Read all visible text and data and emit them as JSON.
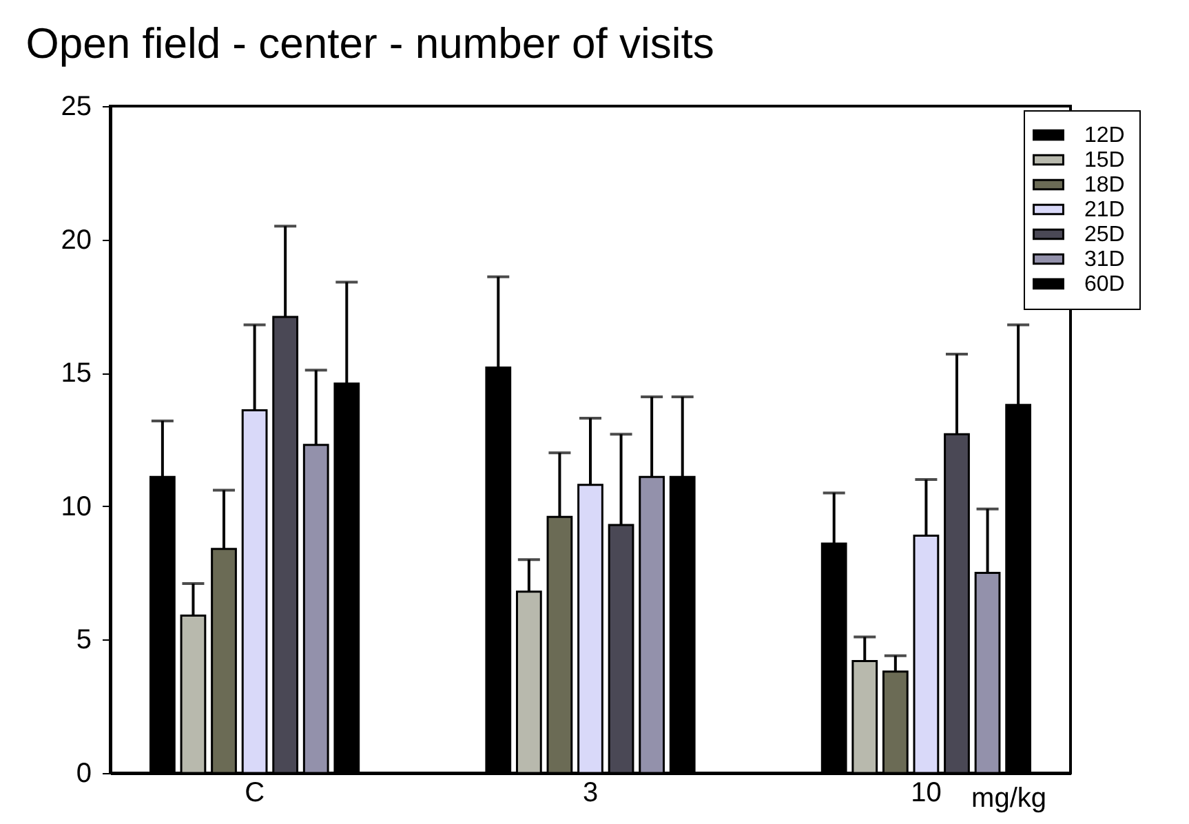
{
  "chart_data": {
    "type": "bar",
    "title": "Open field - center - number of visits",
    "xlabel": "mg/kg",
    "categories": [
      "C",
      "3",
      "10"
    ],
    "series": [
      {
        "name": "12D",
        "color": "#000000",
        "values": [
          11.1,
          15.2,
          8.6
        ],
        "errors": [
          [
            11.1,
            13.2
          ],
          [
            15.2,
            18.6
          ],
          [
            8.6,
            10.5
          ]
        ]
      },
      {
        "name": "15D",
        "color": "#b8b9ad",
        "values": [
          5.9,
          6.8,
          4.2
        ],
        "errors": [
          [
            5.9,
            7.1
          ],
          [
            6.8,
            8.0
          ],
          [
            4.2,
            5.1
          ]
        ]
      },
      {
        "name": "18D",
        "color": "#6b6b55",
        "values": [
          8.4,
          9.6,
          3.8
        ],
        "errors": [
          [
            8.4,
            10.6
          ],
          [
            9.6,
            12.0
          ],
          [
            3.8,
            4.4
          ]
        ]
      },
      {
        "name": "21D",
        "color": "#d9d9f9",
        "values": [
          13.6,
          10.8,
          8.9
        ],
        "errors": [
          [
            13.6,
            16.8
          ],
          [
            10.8,
            13.3
          ],
          [
            8.9,
            11.0
          ]
        ]
      },
      {
        "name": "25D",
        "color": "#4a4855",
        "values": [
          17.1,
          9.3,
          12.7
        ],
        "errors": [
          [
            17.1,
            20.5
          ],
          [
            9.3,
            12.7
          ],
          [
            12.7,
            15.7
          ]
        ]
      },
      {
        "name": "31D",
        "color": "#9391ab",
        "values": [
          12.3,
          11.1,
          7.5
        ],
        "errors": [
          [
            12.3,
            15.1
          ],
          [
            11.1,
            14.1
          ],
          [
            7.5,
            9.9
          ]
        ]
      },
      {
        "name": "60D",
        "color": "#000000",
        "values": [
          14.6,
          11.1,
          13.8
        ],
        "errors": [
          [
            14.6,
            18.4
          ],
          [
            11.1,
            14.1
          ],
          [
            13.8,
            16.8
          ]
        ]
      }
    ],
    "ylim": [
      0,
      25
    ],
    "yticks": [
      0,
      5,
      10,
      15,
      20,
      25
    ],
    "grid": false,
    "legend": "top right"
  }
}
